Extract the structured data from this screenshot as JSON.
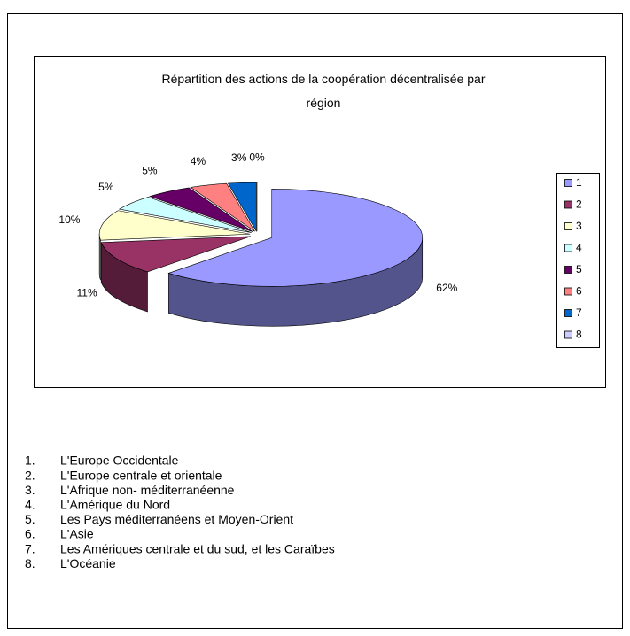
{
  "chart_data": {
    "type": "pie",
    "title": "Répartition des actions de la coopération décentralisée par région",
    "categories": [
      "1",
      "2",
      "3",
      "4",
      "5",
      "6",
      "7",
      "8"
    ],
    "values": [
      62,
      11,
      10,
      5,
      5,
      4,
      3,
      0
    ],
    "value_labels": [
      "62%",
      "11%",
      "10%",
      "5%",
      "5%",
      "4%",
      "3%",
      "0%"
    ],
    "colors": [
      "#9999ff",
      "#993366",
      "#ffffcc",
      "#ccffff",
      "#660066",
      "#ff8080",
      "#0066cc",
      "#ccccff"
    ],
    "legend": "right"
  },
  "list": [
    {
      "number": "1.",
      "text": "L'Europe Occidentale"
    },
    {
      "number": "2.",
      "text": "L'Europe centrale et orientale"
    },
    {
      "number": "3.",
      "text": "L'Afrique non- méditerranéenne"
    },
    {
      "number": "4.",
      "text": "L'Amérique du Nord"
    },
    {
      "number": "5.",
      "text": "Les Pays méditerranéens et Moyen-Orient"
    },
    {
      "number": "6.",
      "text": "L'Asie"
    },
    {
      "number": "7.",
      "text": "Les Amériques centrale et du sud, et les Caraïbes"
    },
    {
      "number": "8.",
      "text": "L'Océanie"
    }
  ]
}
